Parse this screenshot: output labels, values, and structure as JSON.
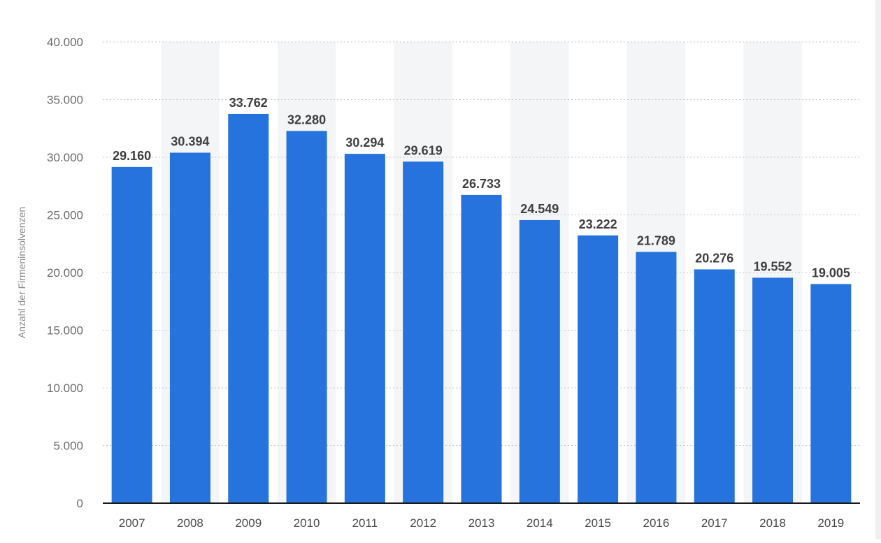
{
  "chart_data": {
    "type": "bar",
    "title": "",
    "xlabel": "",
    "ylabel": "Anzahl der Firmeninsolvenzen",
    "categories": [
      "2007",
      "2008",
      "2009",
      "2010",
      "2011",
      "2012",
      "2013",
      "2014",
      "2015",
      "2016",
      "2017",
      "2018",
      "2019"
    ],
    "values": [
      29160,
      30394,
      33762,
      32280,
      30294,
      29619,
      26733,
      24549,
      23222,
      21789,
      20276,
      19552,
      19005
    ],
    "value_labels": [
      "29.160",
      "30.394",
      "33.762",
      "32.280",
      "30.294",
      "29.619",
      "26.733",
      "24.549",
      "23.222",
      "21.789",
      "20.276",
      "19.552",
      "19.005"
    ],
    "ylim": [
      0,
      40000
    ],
    "yticks": [
      0,
      5000,
      10000,
      15000,
      20000,
      25000,
      30000,
      35000,
      40000
    ],
    "ytick_labels": [
      "0",
      "5.000",
      "10.000",
      "15.000",
      "20.000",
      "25.000",
      "30.000",
      "35.000",
      "40.000"
    ],
    "grid": true,
    "legend": "none",
    "colors": {
      "bar": "#2673dd",
      "band": "#f4f5f7",
      "grid": "#c8c8c8",
      "axis": "#1a1a1a"
    }
  }
}
